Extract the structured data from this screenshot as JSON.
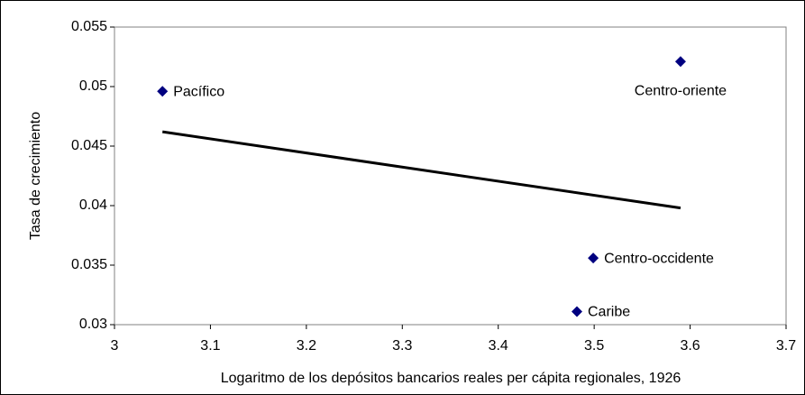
{
  "chart_data": {
    "type": "scatter",
    "x_label": "Logaritmo de los depósitos bancarios reales per cápita regionales, 1926",
    "y_label": "Tasa de crecimiento",
    "color": "#000080",
    "points": [
      {
        "label": "Pacífico",
        "x": 3.05,
        "y": 0.0496
      },
      {
        "label": "Centro-oriente",
        "x": 3.59,
        "y": 0.0521
      },
      {
        "label": "Centro-occidente",
        "x": 3.499,
        "y": 0.0356
      },
      {
        "label": "Caribe",
        "x": 3.482,
        "y": 0.0311
      }
    ],
    "trendline": {
      "x": [
        3.05,
        3.59
      ],
      "y": [
        0.0462,
        0.0398
      ],
      "color": "#000000"
    },
    "xlim": [
      3,
      3.7
    ],
    "xticks": [
      3,
      3.1,
      3.2,
      3.3,
      3.4,
      3.5,
      3.6,
      3.7
    ],
    "ylim": [
      0.03,
      0.055
    ],
    "yticks": [
      0.03,
      0.035,
      0.04,
      0.045,
      0.05,
      0.055
    ]
  }
}
